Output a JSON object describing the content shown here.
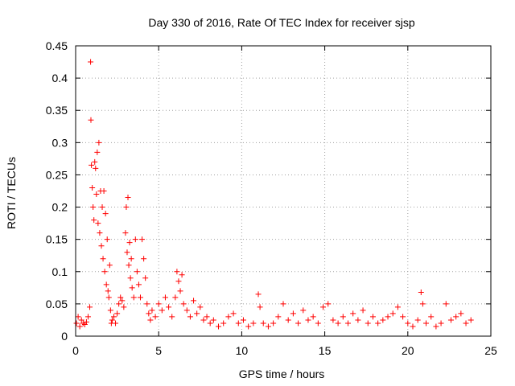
{
  "chart_data": {
    "type": "scatter",
    "title": "Day 330 of 2016, Rate Of TEC Index for receiver sjsp",
    "xlabel": "GPS time / hours",
    "ylabel": "ROTI / TECUs",
    "xlim": [
      0,
      25
    ],
    "ylim": [
      0,
      0.45
    ],
    "xticks": [
      0,
      5,
      10,
      15,
      20,
      25
    ],
    "xtick_labels": [
      "0",
      "5",
      "10",
      "15",
      "20",
      "25"
    ],
    "yticks": [
      0,
      0.05,
      0.1,
      0.15,
      0.2,
      0.25,
      0.3,
      0.35,
      0.4,
      0.45
    ],
    "ytick_labels": [
      "0",
      "0.05",
      "0.1",
      "0.15",
      "0.2",
      "0.25",
      "0.3",
      "0.35",
      "0.4",
      "0.45"
    ],
    "grid": true,
    "marker": "plus",
    "color": "#ff0000",
    "series": [
      {
        "name": "ROTI",
        "points": [
          [
            0.05,
            0.02
          ],
          [
            0.15,
            0.03
          ],
          [
            0.25,
            0.015
          ],
          [
            0.35,
            0.025
          ],
          [
            0.45,
            0.02
          ],
          [
            0.55,
            0.018
          ],
          [
            0.65,
            0.022
          ],
          [
            0.75,
            0.03
          ],
          [
            0.85,
            0.045
          ],
          [
            0.9,
            0.425
          ],
          [
            0.92,
            0.335
          ],
          [
            0.95,
            0.265
          ],
          [
            1.0,
            0.23
          ],
          [
            1.05,
            0.2
          ],
          [
            1.1,
            0.18
          ],
          [
            1.15,
            0.27
          ],
          [
            1.2,
            0.26
          ],
          [
            1.25,
            0.22
          ],
          [
            1.3,
            0.285
          ],
          [
            1.35,
            0.175
          ],
          [
            1.4,
            0.3
          ],
          [
            1.45,
            0.16
          ],
          [
            1.5,
            0.225
          ],
          [
            1.55,
            0.14
          ],
          [
            1.6,
            0.2
          ],
          [
            1.65,
            0.12
          ],
          [
            1.7,
            0.225
          ],
          [
            1.75,
            0.1
          ],
          [
            1.8,
            0.19
          ],
          [
            1.85,
            0.08
          ],
          [
            1.9,
            0.15
          ],
          [
            1.95,
            0.07
          ],
          [
            2.0,
            0.06
          ],
          [
            2.05,
            0.11
          ],
          [
            2.1,
            0.04
          ],
          [
            2.15,
            0.02
          ],
          [
            2.2,
            0.025
          ],
          [
            2.3,
            0.03
          ],
          [
            2.4,
            0.02
          ],
          [
            2.5,
            0.035
          ],
          [
            2.6,
            0.05
          ],
          [
            2.7,
            0.06
          ],
          [
            2.8,
            0.055
          ],
          [
            2.9,
            0.045
          ],
          [
            3.0,
            0.16
          ],
          [
            3.05,
            0.2
          ],
          [
            3.1,
            0.13
          ],
          [
            3.15,
            0.215
          ],
          [
            3.2,
            0.11
          ],
          [
            3.25,
            0.145
          ],
          [
            3.3,
            0.09
          ],
          [
            3.35,
            0.12
          ],
          [
            3.4,
            0.075
          ],
          [
            3.5,
            0.06
          ],
          [
            3.6,
            0.15
          ],
          [
            3.7,
            0.1
          ],
          [
            3.8,
            0.08
          ],
          [
            3.9,
            0.06
          ],
          [
            4.0,
            0.15
          ],
          [
            4.1,
            0.12
          ],
          [
            4.2,
            0.09
          ],
          [
            4.3,
            0.05
          ],
          [
            4.4,
            0.035
          ],
          [
            4.5,
            0.025
          ],
          [
            4.6,
            0.04
          ],
          [
            4.8,
            0.03
          ],
          [
            5.0,
            0.05
          ],
          [
            5.2,
            0.04
          ],
          [
            5.4,
            0.06
          ],
          [
            5.6,
            0.045
          ],
          [
            5.8,
            0.03
          ],
          [
            6.0,
            0.06
          ],
          [
            6.1,
            0.1
          ],
          [
            6.2,
            0.085
          ],
          [
            6.3,
            0.07
          ],
          [
            6.4,
            0.095
          ],
          [
            6.5,
            0.05
          ],
          [
            6.7,
            0.04
          ],
          [
            6.9,
            0.03
          ],
          [
            7.1,
            0.055
          ],
          [
            7.3,
            0.035
          ],
          [
            7.5,
            0.045
          ],
          [
            7.7,
            0.025
          ],
          [
            7.9,
            0.03
          ],
          [
            8.1,
            0.02
          ],
          [
            8.3,
            0.025
          ],
          [
            8.6,
            0.015
          ],
          [
            8.9,
            0.02
          ],
          [
            9.2,
            0.03
          ],
          [
            9.5,
            0.035
          ],
          [
            9.8,
            0.02
          ],
          [
            10.1,
            0.025
          ],
          [
            10.4,
            0.015
          ],
          [
            10.7,
            0.02
          ],
          [
            11.0,
            0.065
          ],
          [
            11.1,
            0.045
          ],
          [
            11.3,
            0.02
          ],
          [
            11.6,
            0.015
          ],
          [
            11.9,
            0.02
          ],
          [
            12.2,
            0.03
          ],
          [
            12.5,
            0.05
          ],
          [
            12.8,
            0.025
          ],
          [
            13.1,
            0.035
          ],
          [
            13.4,
            0.02
          ],
          [
            13.7,
            0.04
          ],
          [
            14.0,
            0.025
          ],
          [
            14.3,
            0.03
          ],
          [
            14.6,
            0.02
          ],
          [
            14.9,
            0.045
          ],
          [
            15.2,
            0.05
          ],
          [
            15.5,
            0.025
          ],
          [
            15.8,
            0.02
          ],
          [
            16.1,
            0.03
          ],
          [
            16.4,
            0.02
          ],
          [
            16.7,
            0.035
          ],
          [
            17.0,
            0.025
          ],
          [
            17.3,
            0.04
          ],
          [
            17.6,
            0.02
          ],
          [
            17.9,
            0.03
          ],
          [
            18.2,
            0.02
          ],
          [
            18.5,
            0.025
          ],
          [
            18.8,
            0.03
          ],
          [
            19.1,
            0.035
          ],
          [
            19.4,
            0.045
          ],
          [
            19.7,
            0.03
          ],
          [
            20.0,
            0.02
          ],
          [
            20.3,
            0.015
          ],
          [
            20.6,
            0.025
          ],
          [
            20.8,
            0.068
          ],
          [
            20.9,
            0.05
          ],
          [
            21.1,
            0.02
          ],
          [
            21.4,
            0.03
          ],
          [
            21.7,
            0.015
          ],
          [
            22.0,
            0.02
          ],
          [
            22.3,
            0.05
          ],
          [
            22.6,
            0.025
          ],
          [
            22.9,
            0.03
          ],
          [
            23.2,
            0.035
          ],
          [
            23.5,
            0.02
          ],
          [
            23.8,
            0.025
          ]
        ]
      }
    ]
  }
}
